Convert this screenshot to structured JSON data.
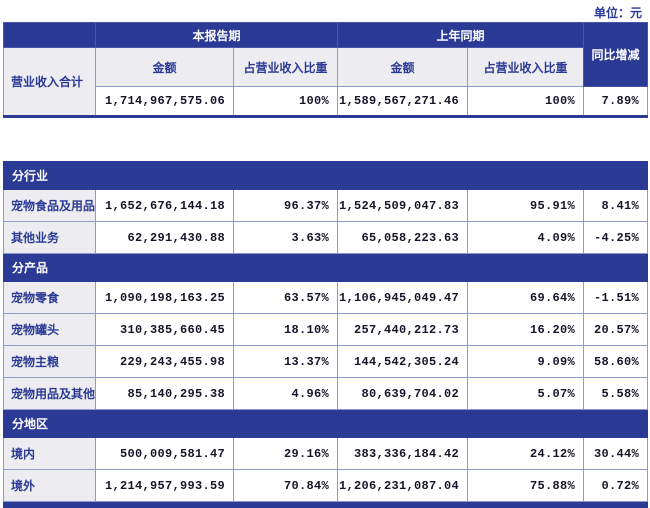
{
  "unit_label": "单位：元",
  "colors": {
    "accent_blue": "#2b3a94",
    "grid_line": "#8d9bcb",
    "label_bg": "#ededf1",
    "number_text": "#15152a",
    "header_text": "#ffffff"
  },
  "table": {
    "header": {
      "current_period": "本报告期",
      "prior_period": "上年同期",
      "yoy_change": "同比增减",
      "amount": "金额",
      "share": "占营业收入比重"
    },
    "total_row": {
      "label": "营业收入合计",
      "current_amount": "1,714,967,575.06",
      "current_share": "100%",
      "prior_amount": "1,589,567,271.46",
      "prior_share": "100%",
      "yoy": "7.89%"
    },
    "sections": [
      {
        "title": "分行业",
        "rows": [
          {
            "label": "宠物食品及用品",
            "current_amount": "1,652,676,144.18",
            "current_share": "96.37%",
            "prior_amount": "1,524,509,047.83",
            "prior_share": "95.91%",
            "yoy": "8.41%"
          },
          {
            "label": "其他业务",
            "current_amount": "62,291,430.88",
            "current_share": "3.63%",
            "prior_amount": "65,058,223.63",
            "prior_share": "4.09%",
            "yoy": "-4.25%"
          }
        ]
      },
      {
        "title": "分产品",
        "rows": [
          {
            "label": "宠物零食",
            "current_amount": "1,090,198,163.25",
            "current_share": "63.57%",
            "prior_amount": "1,106,945,049.47",
            "prior_share": "69.64%",
            "yoy": "-1.51%"
          },
          {
            "label": "宠物罐头",
            "current_amount": "310,385,660.45",
            "current_share": "18.10%",
            "prior_amount": "257,440,212.73",
            "prior_share": "16.20%",
            "yoy": "20.57%"
          },
          {
            "label": "宠物主粮",
            "current_amount": "229,243,455.98",
            "current_share": "13.37%",
            "prior_amount": "144,542,305.24",
            "prior_share": "9.09%",
            "yoy": "58.60%"
          },
          {
            "label": "宠物用品及其他",
            "current_amount": "85,140,295.38",
            "current_share": "4.96%",
            "prior_amount": "80,639,704.02",
            "prior_share": "5.07%",
            "yoy": "5.58%"
          }
        ]
      },
      {
        "title": "分地区",
        "rows": [
          {
            "label": "境内",
            "current_amount": "500,009,581.47",
            "current_share": "29.16%",
            "prior_amount": "383,336,184.42",
            "prior_share": "24.12%",
            "yoy": "30.44%"
          },
          {
            "label": "境外",
            "current_amount": "1,214,957,993.59",
            "current_share": "70.84%",
            "prior_amount": "1,206,231,087.04",
            "prior_share": "75.88%",
            "yoy": "0.72%"
          }
        ]
      }
    ]
  }
}
